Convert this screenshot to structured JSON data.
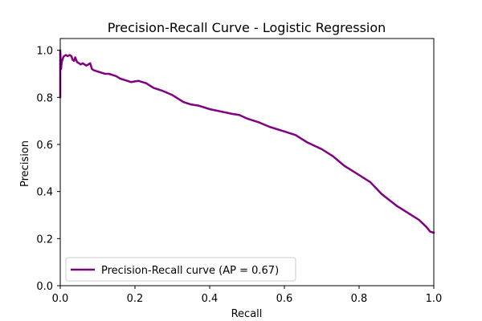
{
  "chart_data": {
    "type": "line",
    "title": "Precision-Recall Curve - Logistic Regression",
    "xlabel": "Recall",
    "ylabel": "Precision",
    "xlim": [
      0.0,
      1.0
    ],
    "ylim": [
      0.0,
      1.05
    ],
    "xticks": [
      0.0,
      0.2,
      0.4,
      0.6,
      0.8,
      1.0
    ],
    "xtick_labels": [
      "0.0",
      "0.2",
      "0.4",
      "0.6",
      "0.8",
      "1.0"
    ],
    "yticks": [
      0.0,
      0.2,
      0.4,
      0.6,
      0.8,
      1.0
    ],
    "ytick_labels": [
      "0.0",
      "0.2",
      "0.4",
      "0.6",
      "0.8",
      "1.0"
    ],
    "grid": false,
    "legend_position": "lower-left",
    "series": [
      {
        "name": "Precision-Recall curve (AP = 0.67)",
        "color": "#800080",
        "x": [
          0.0,
          0.0,
          0.002,
          0.004,
          0.006,
          0.008,
          0.01,
          0.015,
          0.02,
          0.025,
          0.03,
          0.033,
          0.037,
          0.04,
          0.045,
          0.05,
          0.055,
          0.06,
          0.065,
          0.07,
          0.075,
          0.08,
          0.085,
          0.09,
          0.1,
          0.11,
          0.12,
          0.13,
          0.14,
          0.15,
          0.16,
          0.17,
          0.18,
          0.19,
          0.2,
          0.21,
          0.22,
          0.23,
          0.24,
          0.25,
          0.27,
          0.3,
          0.33,
          0.35,
          0.37,
          0.4,
          0.43,
          0.46,
          0.48,
          0.5,
          0.53,
          0.56,
          0.6,
          0.63,
          0.66,
          0.7,
          0.73,
          0.76,
          0.8,
          0.83,
          0.86,
          0.9,
          0.93,
          0.96,
          0.98,
          0.99,
          1.0
        ],
        "y": [
          0.8,
          1.0,
          0.92,
          0.95,
          0.96,
          0.97,
          0.975,
          0.98,
          0.975,
          0.98,
          0.975,
          0.96,
          0.955,
          0.97,
          0.95,
          0.945,
          0.94,
          0.945,
          0.94,
          0.935,
          0.94,
          0.945,
          0.92,
          0.915,
          0.91,
          0.905,
          0.9,
          0.9,
          0.895,
          0.89,
          0.88,
          0.875,
          0.87,
          0.865,
          0.868,
          0.87,
          0.865,
          0.86,
          0.85,
          0.84,
          0.83,
          0.81,
          0.78,
          0.77,
          0.765,
          0.75,
          0.74,
          0.73,
          0.725,
          0.71,
          0.695,
          0.675,
          0.655,
          0.64,
          0.61,
          0.58,
          0.55,
          0.51,
          0.47,
          0.44,
          0.39,
          0.34,
          0.31,
          0.28,
          0.25,
          0.23,
          0.225
        ]
      }
    ]
  }
}
